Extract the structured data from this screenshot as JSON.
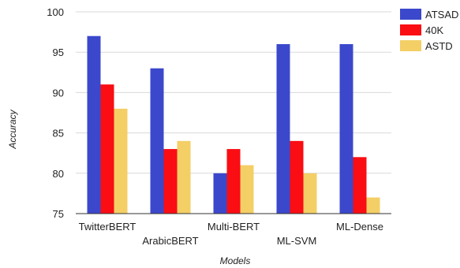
{
  "chart_data": {
    "type": "bar",
    "title": "",
    "xlabel": "Models",
    "ylabel": "Accuracy",
    "ylim": [
      75,
      100
    ],
    "yticks": [
      75,
      80,
      85,
      90,
      95,
      100
    ],
    "grid": true,
    "legend_position": "top-right",
    "categories": [
      "TwitterBERT",
      "ArabicBERT",
      "Multi-BERT",
      "ML-SVM",
      "ML-Dense"
    ],
    "series": [
      {
        "name": "ATSAD",
        "color": "#3b48cc",
        "values": [
          97,
          93,
          80,
          96,
          96
        ]
      },
      {
        "name": "40K",
        "color": "#fa0d13",
        "values": [
          91,
          83,
          83,
          84,
          82
        ]
      },
      {
        "name": "ASTD",
        "color": "#f3cf66",
        "values": [
          88,
          84,
          81,
          80,
          77
        ]
      }
    ]
  }
}
